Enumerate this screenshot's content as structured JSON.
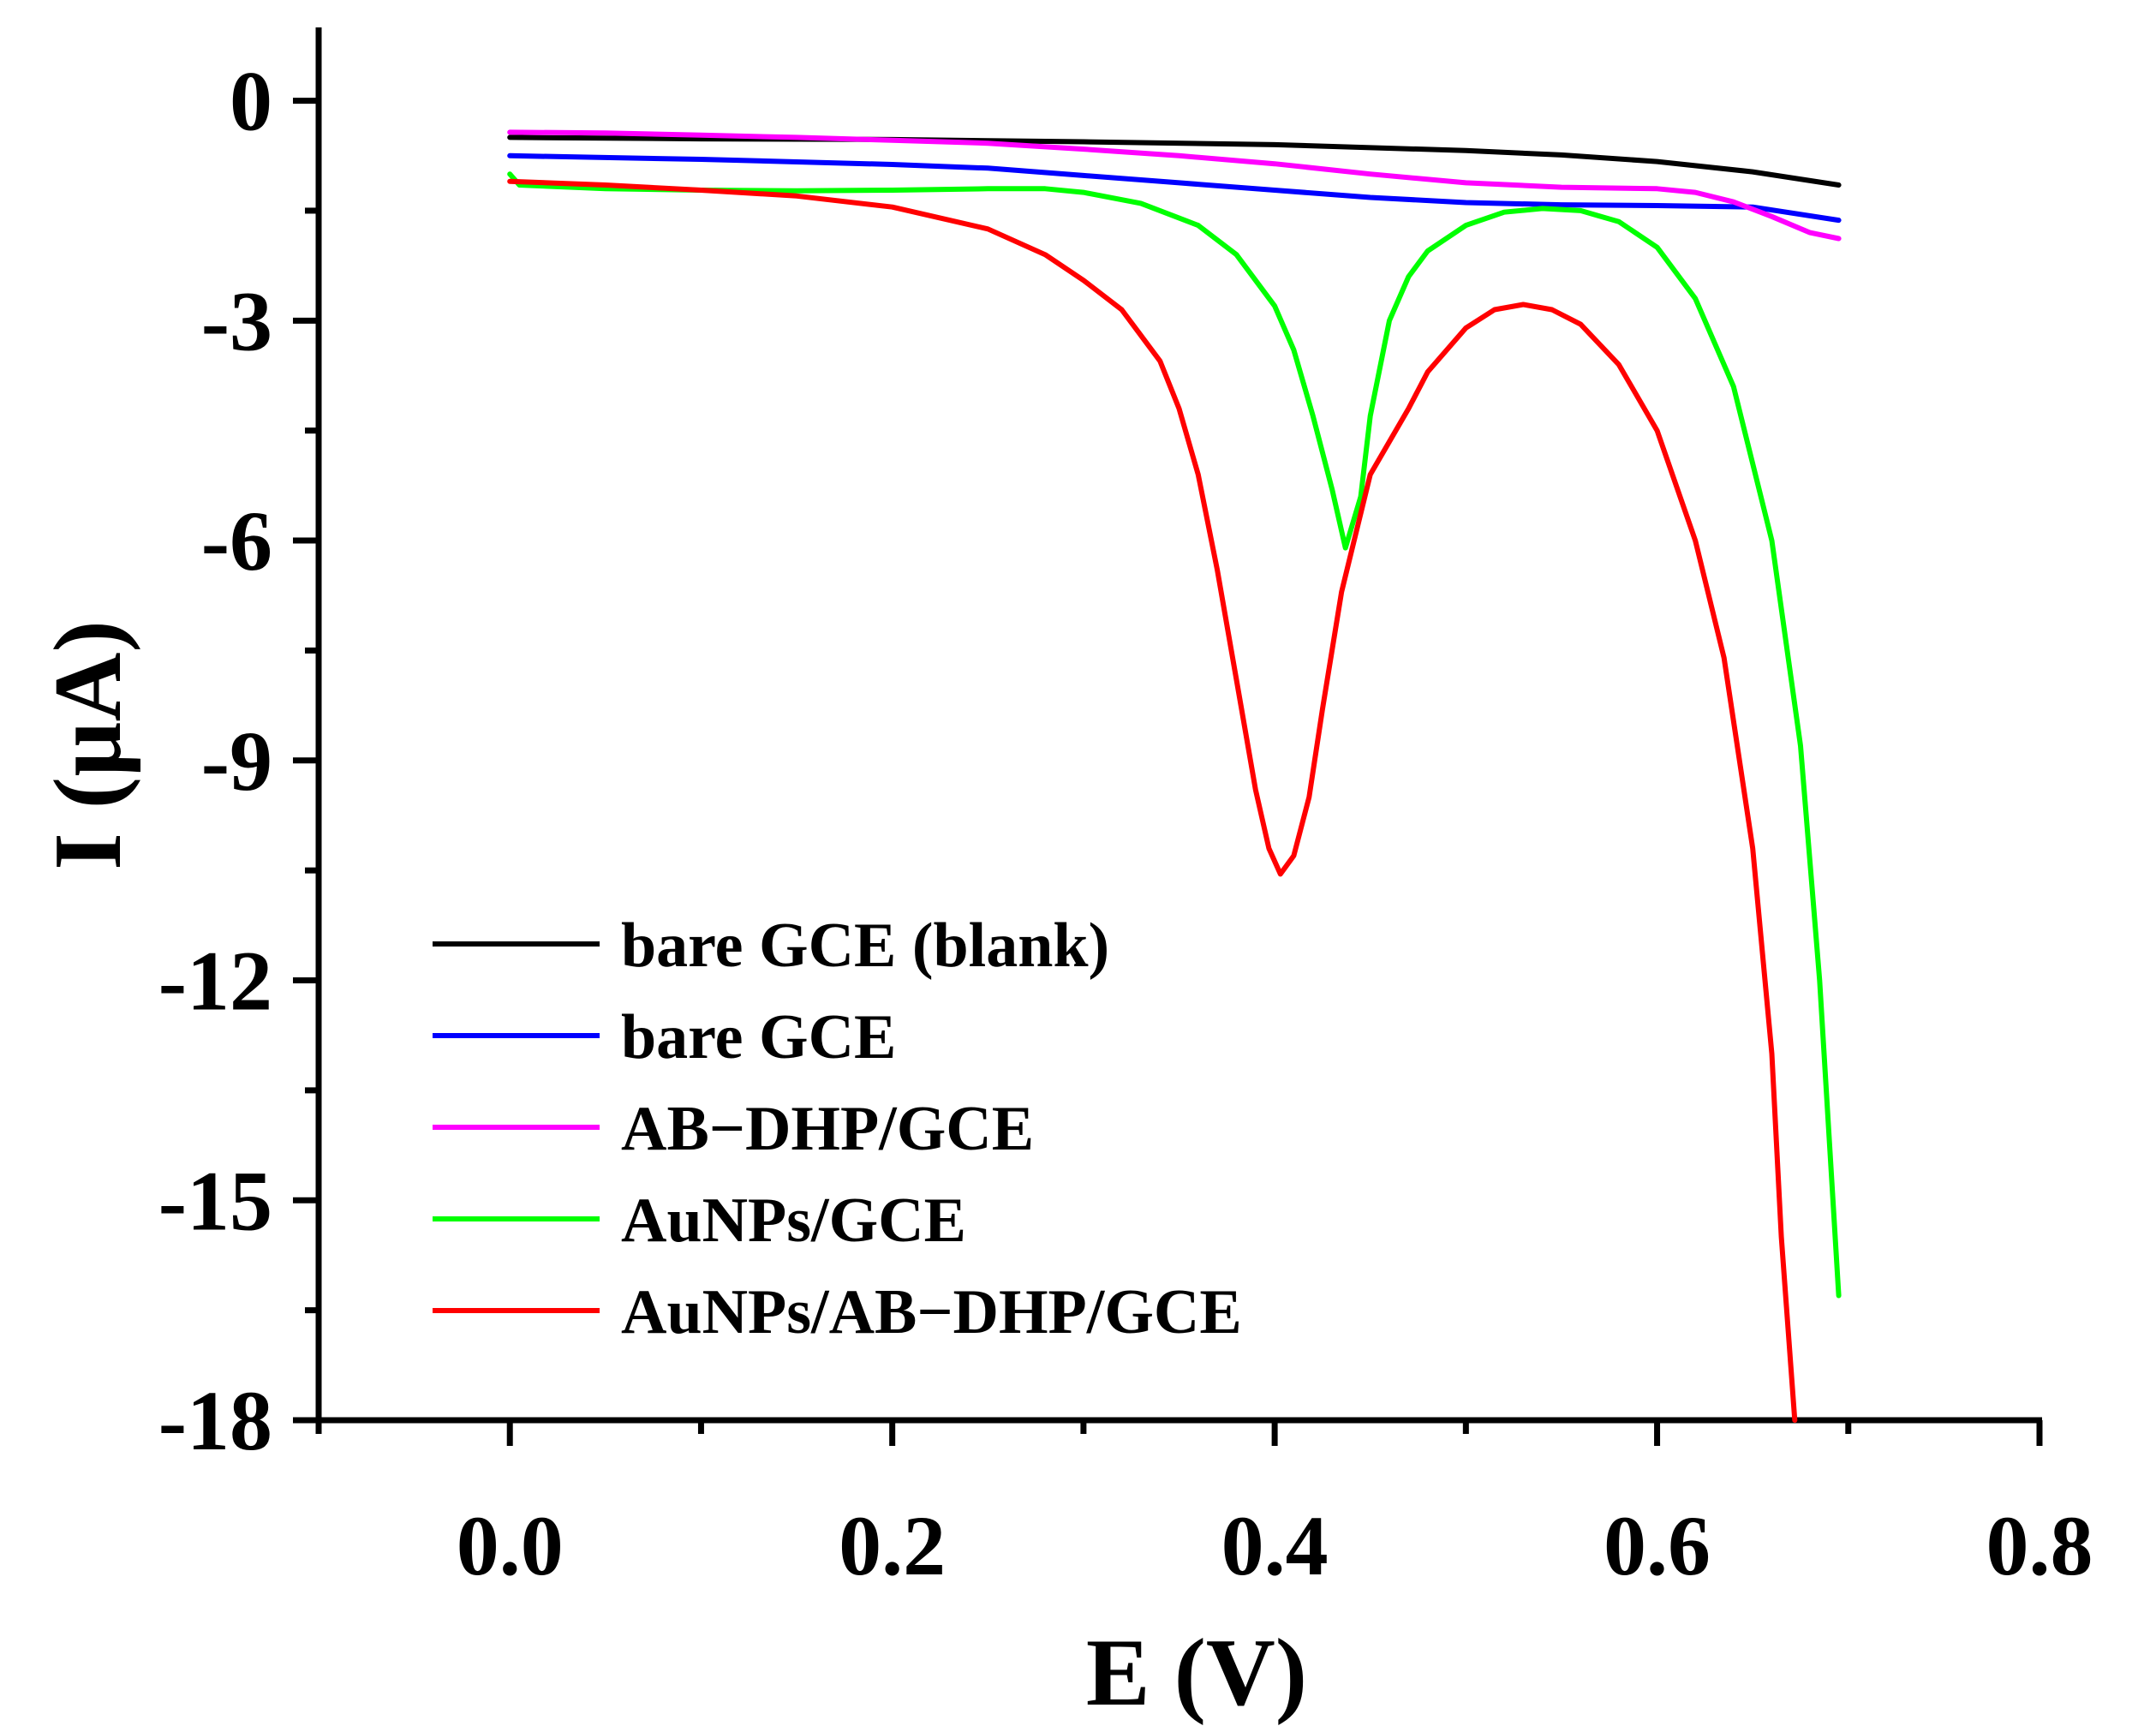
{
  "chart_data": {
    "type": "line",
    "title": "",
    "xlabel": "E (V)",
    "ylabel": "I (µA)",
    "xlim": [
      -0.1,
      0.8
    ],
    "ylim": [
      -18,
      1
    ],
    "x_ticks": [
      0.0,
      0.2,
      0.4,
      0.6,
      0.8
    ],
    "x_tick_labels": [
      "0.0",
      "0.2",
      "0.4",
      "0.6",
      "0.8"
    ],
    "x_minor_ticks": [
      -0.1,
      0.1,
      0.3,
      0.5,
      0.7
    ],
    "y_ticks": [
      0,
      -3,
      -6,
      -9,
      -12,
      -15,
      -18
    ],
    "y_tick_labels": [
      "0",
      "-3",
      "-6",
      "-9",
      "-12",
      "-15",
      "-18"
    ],
    "y_minor_ticks": [
      -1.5,
      -4.5,
      -7.5,
      -10.5,
      -13.5,
      -16.5
    ],
    "grid": false,
    "legend_position": "bottom-left",
    "series": [
      {
        "name": "bare GCE (blank)",
        "color": "#000000",
        "points": [
          [
            0.0,
            -0.5
          ],
          [
            0.1,
            -0.52
          ],
          [
            0.2,
            -0.53
          ],
          [
            0.3,
            -0.56
          ],
          [
            0.4,
            -0.6
          ],
          [
            0.5,
            -0.68
          ],
          [
            0.55,
            -0.74
          ],
          [
            0.6,
            -0.83
          ],
          [
            0.65,
            -0.97
          ],
          [
            0.695,
            -1.15
          ]
        ]
      },
      {
        "name": "bare GCE",
        "color": "#0000ff",
        "points": [
          [
            0.0,
            -0.75
          ],
          [
            0.1,
            -0.8
          ],
          [
            0.2,
            -0.87
          ],
          [
            0.25,
            -0.92
          ],
          [
            0.3,
            -1.02
          ],
          [
            0.35,
            -1.12
          ],
          [
            0.4,
            -1.22
          ],
          [
            0.45,
            -1.32
          ],
          [
            0.5,
            -1.39
          ],
          [
            0.55,
            -1.42
          ],
          [
            0.6,
            -1.43
          ],
          [
            0.65,
            -1.45
          ],
          [
            0.695,
            -1.63
          ]
        ]
      },
      {
        "name": "AB−DHP/GCE",
        "color": "#ff00ff",
        "points": [
          [
            0.0,
            -0.43
          ],
          [
            0.05,
            -0.44
          ],
          [
            0.1,
            -0.47
          ],
          [
            0.15,
            -0.5
          ],
          [
            0.2,
            -0.54
          ],
          [
            0.25,
            -0.58
          ],
          [
            0.3,
            -0.66
          ],
          [
            0.35,
            -0.75
          ],
          [
            0.4,
            -0.86
          ],
          [
            0.45,
            -1.0
          ],
          [
            0.5,
            -1.12
          ],
          [
            0.55,
            -1.18
          ],
          [
            0.6,
            -1.2
          ],
          [
            0.62,
            -1.25
          ],
          [
            0.64,
            -1.38
          ],
          [
            0.66,
            -1.58
          ],
          [
            0.68,
            -1.8
          ],
          [
            0.695,
            -1.88
          ]
        ]
      },
      {
        "name": "AuNPs/GCE",
        "color": "#00ff00",
        "points": [
          [
            0.0,
            -1.0
          ],
          [
            0.005,
            -1.15
          ],
          [
            0.05,
            -1.2
          ],
          [
            0.1,
            -1.22
          ],
          [
            0.15,
            -1.23
          ],
          [
            0.2,
            -1.22
          ],
          [
            0.25,
            -1.2
          ],
          [
            0.28,
            -1.2
          ],
          [
            0.3,
            -1.25
          ],
          [
            0.33,
            -1.4
          ],
          [
            0.36,
            -1.7
          ],
          [
            0.38,
            -2.1
          ],
          [
            0.4,
            -2.8
          ],
          [
            0.41,
            -3.4
          ],
          [
            0.42,
            -4.3
          ],
          [
            0.43,
            -5.3
          ],
          [
            0.437,
            -6.1
          ],
          [
            0.445,
            -5.4
          ],
          [
            0.45,
            -4.3
          ],
          [
            0.46,
            -3.0
          ],
          [
            0.47,
            -2.4
          ],
          [
            0.48,
            -2.05
          ],
          [
            0.5,
            -1.7
          ],
          [
            0.52,
            -1.52
          ],
          [
            0.54,
            -1.47
          ],
          [
            0.56,
            -1.5
          ],
          [
            0.58,
            -1.65
          ],
          [
            0.6,
            -2.0
          ],
          [
            0.62,
            -2.7
          ],
          [
            0.64,
            -3.9
          ],
          [
            0.66,
            -6.0
          ],
          [
            0.675,
            -8.8
          ],
          [
            0.685,
            -12.0
          ],
          [
            0.695,
            -16.3
          ]
        ]
      },
      {
        "name": "AuNPs/AB−DHP/GCE",
        "color": "#ff0000",
        "points": [
          [
            0.0,
            -1.1
          ],
          [
            0.05,
            -1.15
          ],
          [
            0.1,
            -1.22
          ],
          [
            0.15,
            -1.3
          ],
          [
            0.2,
            -1.45
          ],
          [
            0.25,
            -1.75
          ],
          [
            0.28,
            -2.1
          ],
          [
            0.3,
            -2.45
          ],
          [
            0.32,
            -2.85
          ],
          [
            0.34,
            -3.55
          ],
          [
            0.35,
            -4.2
          ],
          [
            0.36,
            -5.1
          ],
          [
            0.37,
            -6.4
          ],
          [
            0.38,
            -7.9
          ],
          [
            0.39,
            -9.4
          ],
          [
            0.397,
            -10.2
          ],
          [
            0.403,
            -10.55
          ],
          [
            0.41,
            -10.3
          ],
          [
            0.418,
            -9.5
          ],
          [
            0.425,
            -8.3
          ],
          [
            0.435,
            -6.7
          ],
          [
            0.45,
            -5.1
          ],
          [
            0.47,
            -4.2
          ],
          [
            0.48,
            -3.7
          ],
          [
            0.5,
            -3.1
          ],
          [
            0.515,
            -2.85
          ],
          [
            0.53,
            -2.78
          ],
          [
            0.545,
            -2.85
          ],
          [
            0.56,
            -3.05
          ],
          [
            0.58,
            -3.6
          ],
          [
            0.6,
            -4.5
          ],
          [
            0.62,
            -6.0
          ],
          [
            0.635,
            -7.6
          ],
          [
            0.65,
            -10.2
          ],
          [
            0.66,
            -13.0
          ],
          [
            0.665,
            -15.5
          ],
          [
            0.672,
            -18.0
          ]
        ]
      }
    ]
  }
}
